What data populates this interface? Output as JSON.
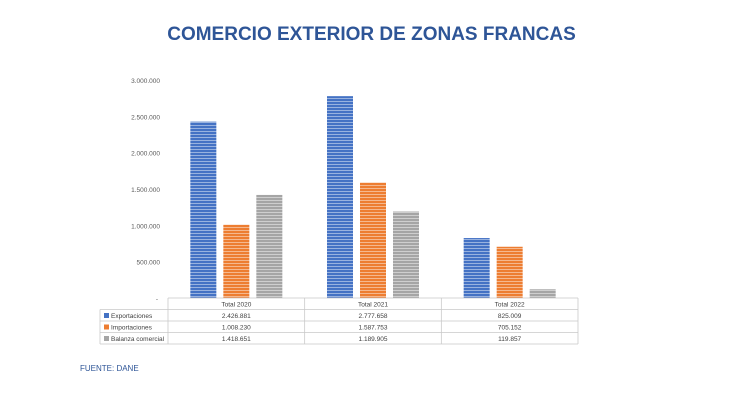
{
  "chart_data": {
    "type": "bar",
    "title": "COMERCIO EXTERIOR DE ZONAS FRANCAS",
    "categories": [
      "Total 2020",
      "Total 2021",
      "Total 2022"
    ],
    "series": [
      {
        "name": "Exportaciones",
        "values": [
          2426881,
          2777658,
          825009
        ],
        "labels": [
          "2.426.881",
          "2.777.658",
          "825.009"
        ],
        "color": "#4472c4"
      },
      {
        "name": "Importaciones",
        "values": [
          1008230,
          1587753,
          705152
        ],
        "labels": [
          "1.008.230",
          "1.587.753",
          "705.152"
        ],
        "color": "#ed7d31"
      },
      {
        "name": "Balanza comercial",
        "values": [
          1418651,
          1189905,
          119857
        ],
        "labels": [
          "1.418.651",
          "1.189.905",
          "119.857"
        ],
        "color": "#a5a5a5"
      }
    ],
    "ylim": [
      0,
      3000000
    ],
    "yticks": [
      500000,
      1000000,
      1500000,
      2000000,
      2500000,
      3000000
    ],
    "ytick_labels": [
      "500.000",
      "1.000.000",
      "1.500.000",
      "2.000.000",
      "2.500.000",
      "3.000.000"
    ],
    "grid": false,
    "legend": "data-table"
  },
  "source_text": "FUENTE: DANE"
}
